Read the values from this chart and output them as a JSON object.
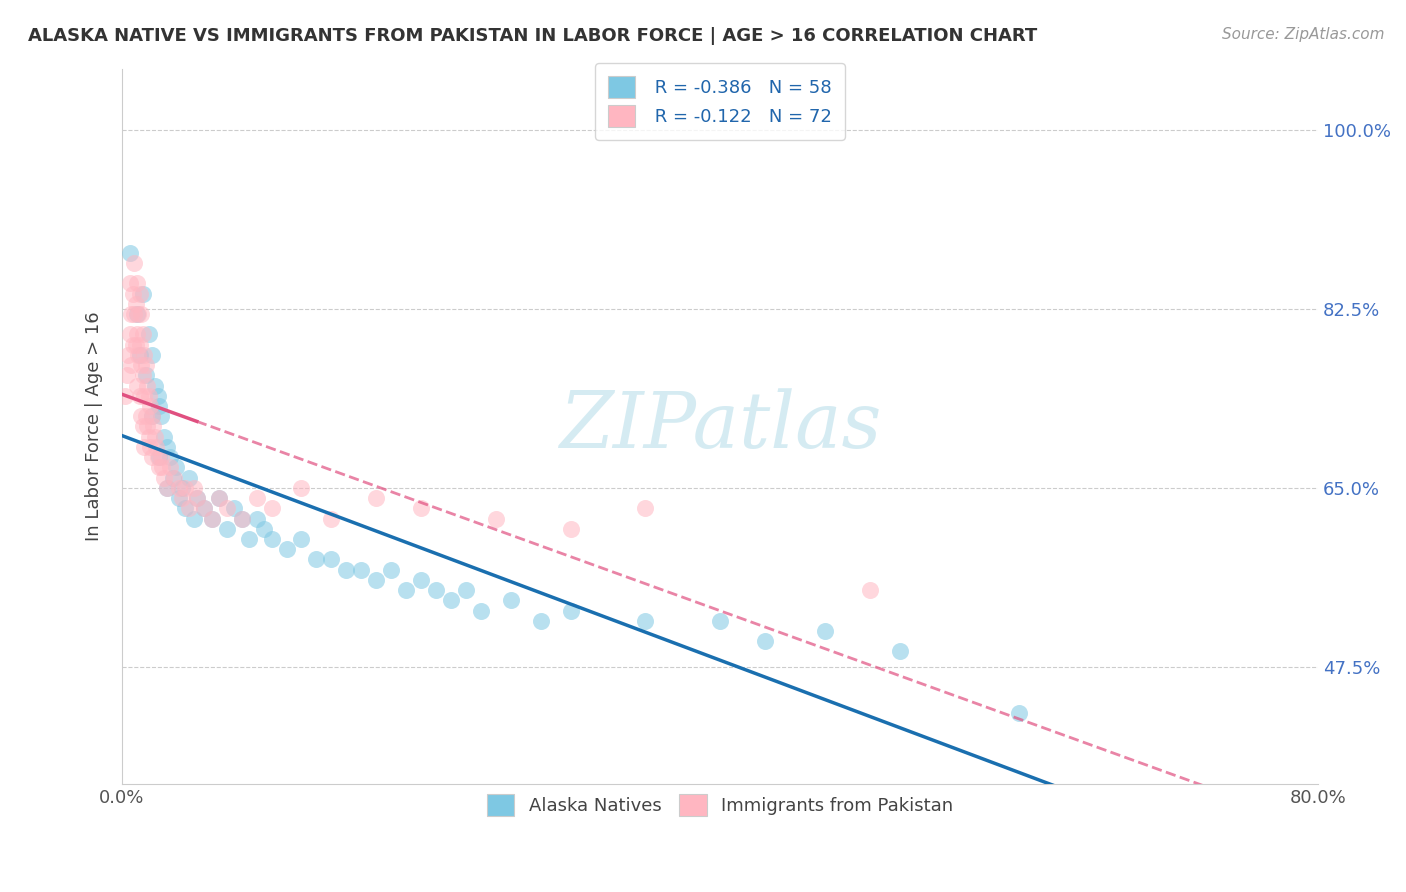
{
  "title": "ALASKA NATIVE VS IMMIGRANTS FROM PAKISTAN IN LABOR FORCE | AGE > 16 CORRELATION CHART",
  "source": "Source: ZipAtlas.com",
  "ylabel": "In Labor Force | Age > 16",
  "ytick_labels": [
    "47.5%",
    "65.0%",
    "82.5%",
    "100.0%"
  ],
  "ytick_values": [
    0.475,
    0.65,
    0.825,
    1.0
  ],
  "xlim": [
    0.0,
    0.8
  ],
  "ylim": [
    0.36,
    1.06
  ],
  "legend_r1": "R = -0.386",
  "legend_n1": "N = 58",
  "legend_r2": "R = -0.122",
  "legend_n2": "N = 72",
  "color_blue": "#7ec8e3",
  "color_pink": "#ffb6c1",
  "color_blue_line": "#1a6faf",
  "color_pink_line": "#e05080",
  "watermark": "ZIPatlas",
  "alaska_x": [
    0.005,
    0.01,
    0.012,
    0.014,
    0.016,
    0.018,
    0.02,
    0.02,
    0.022,
    0.024,
    0.025,
    0.025,
    0.026,
    0.028,
    0.03,
    0.03,
    0.032,
    0.034,
    0.036,
    0.038,
    0.04,
    0.042,
    0.045,
    0.048,
    0.05,
    0.055,
    0.06,
    0.065,
    0.07,
    0.075,
    0.08,
    0.085,
    0.09,
    0.095,
    0.1,
    0.11,
    0.12,
    0.13,
    0.14,
    0.15,
    0.16,
    0.17,
    0.18,
    0.19,
    0.2,
    0.21,
    0.22,
    0.23,
    0.24,
    0.26,
    0.28,
    0.3,
    0.35,
    0.4,
    0.43,
    0.47,
    0.52,
    0.6
  ],
  "alaska_y": [
    0.88,
    0.82,
    0.78,
    0.84,
    0.76,
    0.8,
    0.78,
    0.72,
    0.75,
    0.74,
    0.73,
    0.68,
    0.72,
    0.7,
    0.69,
    0.65,
    0.68,
    0.66,
    0.67,
    0.64,
    0.65,
    0.63,
    0.66,
    0.62,
    0.64,
    0.63,
    0.62,
    0.64,
    0.61,
    0.63,
    0.62,
    0.6,
    0.62,
    0.61,
    0.6,
    0.59,
    0.6,
    0.58,
    0.58,
    0.57,
    0.57,
    0.56,
    0.57,
    0.55,
    0.56,
    0.55,
    0.54,
    0.55,
    0.53,
    0.54,
    0.52,
    0.53,
    0.52,
    0.52,
    0.5,
    0.51,
    0.49,
    0.43
  ],
  "pakistan_x": [
    0.002,
    0.003,
    0.004,
    0.005,
    0.005,
    0.006,
    0.006,
    0.007,
    0.007,
    0.008,
    0.008,
    0.009,
    0.009,
    0.01,
    0.01,
    0.01,
    0.011,
    0.011,
    0.012,
    0.012,
    0.012,
    0.013,
    0.013,
    0.013,
    0.014,
    0.014,
    0.014,
    0.015,
    0.015,
    0.015,
    0.016,
    0.016,
    0.017,
    0.017,
    0.018,
    0.018,
    0.019,
    0.019,
    0.02,
    0.02,
    0.021,
    0.022,
    0.023,
    0.024,
    0.025,
    0.026,
    0.027,
    0.028,
    0.03,
    0.032,
    0.035,
    0.038,
    0.04,
    0.042,
    0.045,
    0.048,
    0.05,
    0.055,
    0.06,
    0.065,
    0.07,
    0.08,
    0.09,
    0.1,
    0.12,
    0.14,
    0.17,
    0.2,
    0.25,
    0.3,
    0.35,
    0.5
  ],
  "pakistan_y": [
    0.74,
    0.76,
    0.78,
    0.8,
    0.85,
    0.82,
    0.77,
    0.84,
    0.79,
    0.87,
    0.82,
    0.83,
    0.79,
    0.85,
    0.8,
    0.75,
    0.82,
    0.78,
    0.84,
    0.79,
    0.74,
    0.82,
    0.77,
    0.72,
    0.8,
    0.76,
    0.71,
    0.78,
    0.74,
    0.69,
    0.77,
    0.72,
    0.75,
    0.71,
    0.74,
    0.7,
    0.73,
    0.69,
    0.72,
    0.68,
    0.71,
    0.7,
    0.69,
    0.68,
    0.67,
    0.68,
    0.67,
    0.66,
    0.65,
    0.67,
    0.66,
    0.65,
    0.64,
    0.65,
    0.63,
    0.65,
    0.64,
    0.63,
    0.62,
    0.64,
    0.63,
    0.62,
    0.64,
    0.63,
    0.65,
    0.62,
    0.64,
    0.63,
    0.62,
    0.61,
    0.63,
    0.55
  ]
}
